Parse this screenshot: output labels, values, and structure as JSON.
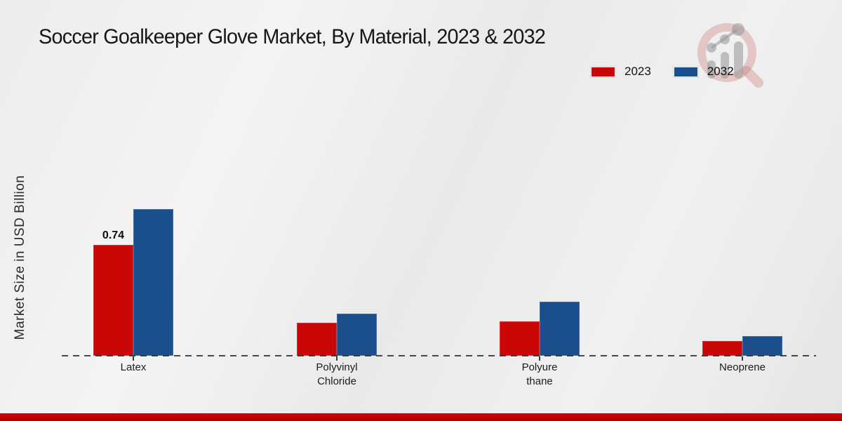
{
  "title": "Soccer Goalkeeper Glove Market, By Material, 2023 & 2032",
  "y_axis_label": "Market Size in USD Billion",
  "legend": [
    {
      "label": "2023",
      "color": "#c90707"
    },
    {
      "label": "2032",
      "color": "#1b4f8c"
    }
  ],
  "colors": {
    "series_2023": "#c90707",
    "series_2032": "#1b4f8c",
    "footer_strip": "#c00303",
    "baseline": "#2a2a2a"
  },
  "icons": {
    "watermark": "magnifier-bar-chart-logo-icon"
  },
  "chart_data": {
    "type": "bar",
    "categories": [
      "Latex",
      "Polyvinyl Chloride",
      "Polyurethane",
      "Neoprene"
    ],
    "category_label_lines": [
      [
        "Latex"
      ],
      [
        "Polyvinyl",
        "Chloride"
      ],
      [
        "Polyure",
        "thane"
      ],
      [
        "Neoprene"
      ]
    ],
    "series": [
      {
        "name": "2023",
        "color": "#c90707",
        "values": [
          0.74,
          0.22,
          0.23,
          0.1
        ]
      },
      {
        "name": "2032",
        "color": "#1b4f8c",
        "values": [
          0.98,
          0.28,
          0.36,
          0.13
        ]
      }
    ],
    "data_labels": [
      {
        "series": "2023",
        "category": "Latex",
        "text": "0.74"
      }
    ],
    "title": "Soccer Goalkeeper Glove Market, By Material, 2023 & 2032",
    "xlabel": "",
    "ylabel": "Market Size in USD Billion",
    "ylim": [
      0,
      1.1
    ],
    "grid": false,
    "axis_line": "dashed-baseline-only",
    "legend_position": "top-right"
  }
}
